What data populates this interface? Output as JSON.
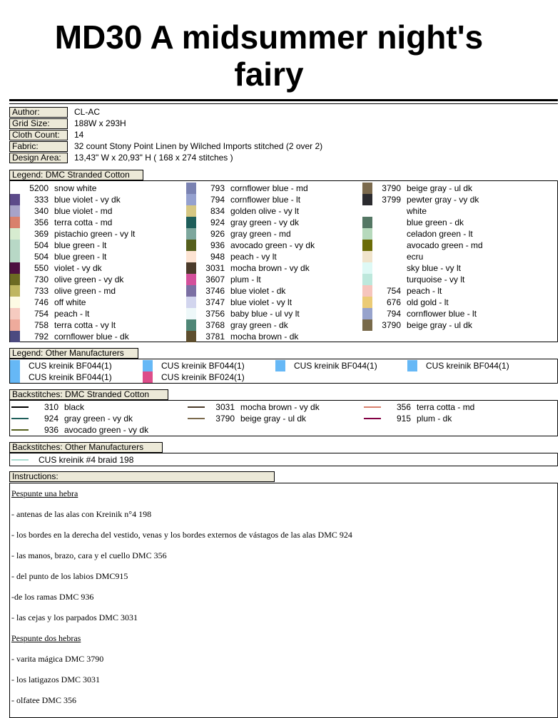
{
  "title": "MD30 A midsummer night's fairy",
  "info": [
    {
      "label": "Author:",
      "value": "CL-AC"
    },
    {
      "label": "Grid Size:",
      "value": "188W x 293H"
    },
    {
      "label": "Cloth Count:",
      "value": "14"
    },
    {
      "label": "Fabric:",
      "value": "32 count Stony Point Linen by Wilched Imports stitched (2 over 2)"
    },
    {
      "label": "Design Area:",
      "value": "13,43\" W  x  20,93\" H   ( 168 x 274 stitches )"
    }
  ],
  "legend_dmc": {
    "title": "Legend: DMC Stranded Cotton",
    "columns": [
      [
        {
          "code": "5200",
          "name": "snow white",
          "color": "#ffffff"
        },
        {
          "code": "333",
          "name": "blue violet - vy dk",
          "color": "#5c4a8a"
        },
        {
          "code": "340",
          "name": "blue violet - md",
          "color": "#a7a3c9"
        },
        {
          "code": "356",
          "name": "terra cotta - md",
          "color": "#d9806c"
        },
        {
          "code": "369",
          "name": "pistachio green - vy lt",
          "color": "#d7ecd0"
        },
        {
          "code": "504",
          "name": "blue green - lt",
          "color": "#b8d8c6"
        },
        {
          "code": "504",
          "name": "blue green - lt",
          "color": "#b8d8c6"
        },
        {
          "code": "550",
          "name": "violet - vy dk",
          "color": "#4d1040"
        },
        {
          "code": "730",
          "name": "olive green - vy dk",
          "color": "#6c6a22"
        },
        {
          "code": "733",
          "name": "olive green - md",
          "color": "#bfb660"
        },
        {
          "code": "746",
          "name": "off white",
          "color": "#fdfbe4"
        },
        {
          "code": "754",
          "name": "peach - lt",
          "color": "#f6cbc0"
        },
        {
          "code": "758",
          "name": "terra cotta - vy lt",
          "color": "#eeab9c"
        },
        {
          "code": "792",
          "name": "cornflower blue - dk",
          "color": "#4c4a80"
        }
      ],
      [
        {
          "code": "793",
          "name": "cornflower blue - md",
          "color": "#7a82b2"
        },
        {
          "code": "794",
          "name": "cornflower blue - lt",
          "color": "#95a1cf"
        },
        {
          "code": "834",
          "name": "golden olive - vy lt",
          "color": "#d6c783"
        },
        {
          "code": "924",
          "name": "gray green - vy dk",
          "color": "#1e5e5a"
        },
        {
          "code": "926",
          "name": "gray green - md",
          "color": "#7da79d"
        },
        {
          "code": "936",
          "name": "avocado green - vy dk",
          "color": "#555f1d"
        },
        {
          "code": "948",
          "name": "peach - vy lt",
          "color": "#fde3d2"
        },
        {
          "code": "3031",
          "name": "mocha brown - vy dk",
          "color": "#4b3b2a"
        },
        {
          "code": "3607",
          "name": "plum - lt",
          "color": "#d3509b"
        },
        {
          "code": "3746",
          "name": "blue violet - dk",
          "color": "#7b6fa3"
        },
        {
          "code": "3747",
          "name": "blue violet - vy lt",
          "color": "#d2d5ee"
        },
        {
          "code": "3756",
          "name": "baby blue - ul vy lt",
          "color": "#eef8f9"
        },
        {
          "code": "3768",
          "name": "gray green - dk",
          "color": "#4f8676"
        },
        {
          "code": "3781",
          "name": "mocha brown - dk",
          "color": "#5d4e2e"
        }
      ],
      [
        {
          "code": "3790",
          "name": "beige gray - ul dk",
          "color": "#7b6a4d"
        },
        {
          "code": "3799",
          "name": "pewter gray - vy dk",
          "color": "#2b2b2f"
        },
        {
          "code": "",
          "name": "white",
          "color": "#ffffff"
        },
        {
          "code": "",
          "name": "blue green - dk",
          "color": "#547764"
        },
        {
          "code": "",
          "name": "celadon green - lt",
          "color": "#b6d9bc"
        },
        {
          "code": "",
          "name": "avocado green - md",
          "color": "#6b6c08"
        },
        {
          "code": "",
          "name": "ecru",
          "color": "#f0e4cc"
        },
        {
          "code": "",
          "name": "sky blue - vy lt",
          "color": "#def9f5"
        },
        {
          "code": "",
          "name": "turquoise - vy lt",
          "color": "#bde8dc"
        },
        {
          "code": "754",
          "name": "peach - lt",
          "color": "#f6c5bd"
        },
        {
          "code": "676",
          "name": "old gold - lt",
          "color": "#ebcb76"
        },
        {
          "code": "794",
          "name": "cornflower blue - lt",
          "color": "#97a3cc"
        },
        {
          "code": "3790",
          "name": "beige gray - ul dk",
          "color": "#786a4a"
        }
      ]
    ]
  },
  "legend_other": {
    "title": "Legend: Other Manufacturers",
    "items": [
      {
        "name": "CUS kreinik  BF044(1)",
        "color": "#66b8f6"
      },
      {
        "name": "CUS kreinik  BF044(1)",
        "color": "#66b8f6"
      },
      {
        "name": "CUS kreinik  BF044(1)",
        "color": "#66b8f6"
      },
      {
        "name": "CUS kreinik  BF044(1)",
        "color": "#66b8f6"
      },
      {
        "name": "CUS kreinik  BF044(1)",
        "color": "#66b8f6"
      },
      {
        "name": "CUS kreinik  BF024(1)",
        "color": "#dd4d8a"
      }
    ]
  },
  "backstitch_dmc": {
    "title": "Backstitches: DMC Stranded Cotton",
    "columns": [
      [
        {
          "code": "310",
          "name": "black",
          "color": "#000000"
        },
        {
          "code": "924",
          "name": "gray green - vy dk",
          "color": "#1e5e5a"
        },
        {
          "code": "936",
          "name": "avocado green - vy dk",
          "color": "#555f1d"
        }
      ],
      [
        {
          "code": "3031",
          "name": "mocha brown - vy dk",
          "color": "#4b3b2a"
        },
        {
          "code": "3790",
          "name": "beige gray - ul dk",
          "color": "#7b6a4d"
        }
      ],
      [
        {
          "code": "356",
          "name": "terra cotta - md",
          "color": "#d9806c"
        },
        {
          "code": "915",
          "name": "plum - dk",
          "color": "#820043"
        }
      ]
    ]
  },
  "backstitch_other": {
    "title": "Backstitches: Other Manufacturers",
    "items": [
      {
        "name": "CUS kreinik  #4 braid 198",
        "color": "#a8dccf"
      }
    ]
  },
  "instructions": {
    "title": "Instructions:",
    "lines": [
      {
        "text": "Pespunte una hebra",
        "heading": true
      },
      {
        "text": "- antenas de las alas con Kreinik n°4 198"
      },
      {
        "text": " - los bordes en la derecha del vestido, venas y los bordes externos de vástagos de las alas DMC 924"
      },
      {
        "text": "- las manos, brazo, cara y el cuello DMC 356"
      },
      {
        "text": "- del punto de los labios DMC915"
      },
      {
        "text": "-de los ramas DMC 936"
      },
      {
        "text": "- las cejas y los parpados DMC 3031"
      },
      {
        "text": "Pespunte dos hebras",
        "heading": true
      },
      {
        "text": "- varita mágica DMC 3790"
      },
      {
        "text": "- los latigazos DMC 3031"
      },
      {
        "text": "- olfatee DMC 356"
      }
    ]
  }
}
